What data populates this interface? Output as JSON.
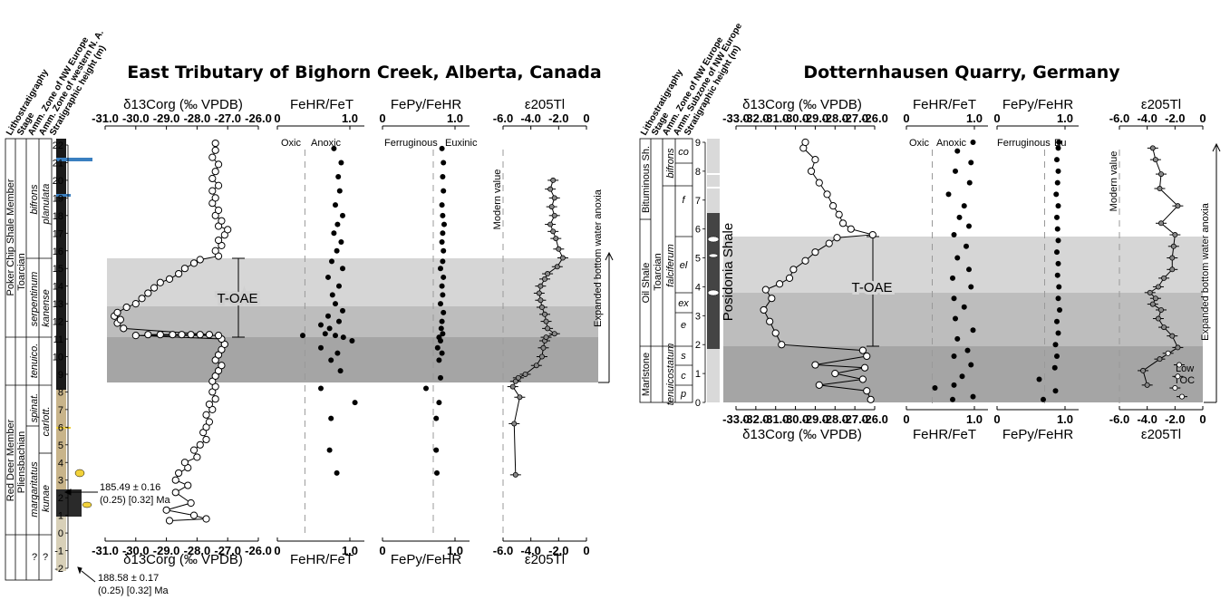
{
  "titles": {
    "left": "East Tributary of Bighorn Creek, Alberta, Canada",
    "right": "Dotternhausen Quarry, Germany"
  },
  "column_headers": {
    "left": [
      "Lithostratigraphy",
      "Stage",
      "Amm. Zone of NW Europe",
      "Amm. Zone of western N. A.",
      "Stratigraphic height (m)"
    ],
    "right": [
      "Lithostratigraphy",
      "Stage",
      "Amm. Zone of NW Europe",
      "Amm. Subzone of NW Europe",
      "Stratigraphic height (m)"
    ]
  },
  "axis_titles": {
    "d13c": "δ13Corg (‰ VPDB)",
    "fehr": "FeHR/FeT",
    "fepy": "FePy/FeHR",
    "tl": "ε205Tl"
  },
  "annotations": {
    "oxic": "Oxic",
    "anoxic": "Anoxic",
    "ferruginous": "Ferruginous",
    "euxinic": "Euxinic",
    "euxinic_short": "Eu",
    "modern": "Modern value",
    "toae": "T-OAE",
    "anoxia": "Expanded bottom water anoxia",
    "low_toc_1": "Low",
    "low_toc_2": "TOC",
    "age_upper_1": "185.49 ± 0.16",
    "age_upper_2": "(0.25) [0.32] Ma",
    "age_lower_1": "188.58 ± 0.17",
    "age_lower_2": "(0.25) [0.32] Ma"
  },
  "strat_left": {
    "members": [
      "Poker Chip Shale Member",
      "Red Deer Member"
    ],
    "stages": [
      "Toarcian",
      "Pliensbachian"
    ],
    "nw_zones": [
      "bifrons",
      "serpentinum",
      "tenuico.",
      "spinat.",
      "margaritatus",
      "?"
    ],
    "na_zones": [
      "planulata",
      "kanense",
      "carlott.",
      "kunae",
      "?"
    ]
  },
  "strat_right": {
    "members": [
      "Bituminous Sh.",
      "Oil Shale",
      "Marlstone"
    ],
    "stage": "Toarcian",
    "zones": [
      "bifrons",
      "falciferum",
      "tenuicostatum"
    ],
    "subzones": [
      "co",
      "f",
      "el",
      "ex",
      "e",
      "s",
      "c",
      "p"
    ],
    "formation": "Posidonia Shale"
  },
  "chart_data": [
    {
      "type": "scatter",
      "panel": "East Tributary δ13Corg",
      "xlabel": "δ13Corg (‰ VPDB)",
      "ylabel": "Stratigraphic height (m)",
      "xlim": [
        -31,
        -26
      ],
      "ylim": [
        -2,
        22
      ],
      "xticks": [
        -31,
        -30,
        -29,
        -28,
        -27,
        -26
      ],
      "yticks": [
        -2,
        -1,
        0,
        1,
        2,
        3,
        4,
        5,
        6,
        7,
        8,
        9,
        10,
        11,
        12,
        13,
        14,
        15,
        16,
        17,
        18,
        19,
        20,
        21,
        22
      ],
      "points": [
        [
          -28.9,
          0.7
        ],
        [
          -28.1,
          1.0
        ],
        [
          -29.0,
          1.3
        ],
        [
          -27.7,
          0.8
        ],
        [
          -28.2,
          1.7
        ],
        [
          -28.7,
          2.3
        ],
        [
          -28.3,
          2.7
        ],
        [
          -28.7,
          3.0
        ],
        [
          -28.6,
          3.4
        ],
        [
          -28.3,
          3.7
        ],
        [
          -28.4,
          4.0
        ],
        [
          -28.0,
          4.3
        ],
        [
          -28.1,
          4.7
        ],
        [
          -27.9,
          5.0
        ],
        [
          -27.7,
          5.3
        ],
        [
          -27.8,
          5.7
        ],
        [
          -27.7,
          6.0
        ],
        [
          -27.6,
          6.3
        ],
        [
          -27.7,
          6.7
        ],
        [
          -27.5,
          7.0
        ],
        [
          -27.6,
          7.3
        ],
        [
          -27.4,
          7.6
        ],
        [
          -27.5,
          8.0
        ],
        [
          -27.4,
          8.3
        ],
        [
          -27.5,
          8.6
        ],
        [
          -27.4,
          8.9
        ],
        [
          -27.3,
          9.2
        ],
        [
          -27.2,
          9.5
        ],
        [
          -27.4,
          9.8
        ],
        [
          -27.3,
          10.1
        ],
        [
          -27.2,
          10.4
        ],
        [
          -27.1,
          10.7
        ],
        [
          -27.2,
          11.0
        ],
        [
          -30.0,
          11.2
        ],
        [
          -29.6,
          11.25
        ],
        [
          -29.2,
          11.25
        ],
        [
          -28.8,
          11.25
        ],
        [
          -28.5,
          11.25
        ],
        [
          -28.2,
          11.25
        ],
        [
          -27.9,
          11.25
        ],
        [
          -27.6,
          11.25
        ],
        [
          -27.3,
          11.2
        ],
        [
          -30.4,
          11.6
        ],
        [
          -30.6,
          11.9
        ],
        [
          -30.5,
          12.1
        ],
        [
          -30.7,
          12.3
        ],
        [
          -30.6,
          12.5
        ],
        [
          -30.3,
          12.8
        ],
        [
          -30.0,
          13.0
        ],
        [
          -29.8,
          13.3
        ],
        [
          -29.6,
          13.6
        ],
        [
          -29.4,
          13.9
        ],
        [
          -29.2,
          14.2
        ],
        [
          -28.9,
          14.4
        ],
        [
          -28.6,
          14.7
        ],
        [
          -28.4,
          15.0
        ],
        [
          -28.1,
          15.3
        ],
        [
          -27.9,
          15.5
        ],
        [
          -27.3,
          15.7
        ],
        [
          -27.4,
          16.0
        ],
        [
          -27.2,
          16.3
        ],
        [
          -27.3,
          16.6
        ],
        [
          -27.1,
          16.9
        ],
        [
          -27.0,
          17.2
        ],
        [
          -27.3,
          17.4
        ],
        [
          -27.2,
          17.7
        ],
        [
          -27.4,
          18.0
        ],
        [
          -27.3,
          18.3
        ],
        [
          -27.5,
          18.7
        ],
        [
          -27.4,
          19.0
        ],
        [
          -27.5,
          19.4
        ],
        [
          -27.3,
          19.7
        ],
        [
          -27.5,
          20.1
        ],
        [
          -27.4,
          20.5
        ],
        [
          -27.3,
          20.9
        ],
        [
          -27.5,
          21.3
        ],
        [
          -27.4,
          21.7
        ],
        [
          -27.4,
          22.1
        ]
      ]
    },
    {
      "type": "scatter",
      "panel": "East Tributary FeHR/FeT",
      "xlabel": "FeHR/FeT",
      "xlim": [
        0,
        1.2
      ],
      "ylim": [
        -2,
        22
      ],
      "xticks": [
        0,
        1.0
      ],
      "threshold": 0.38,
      "points": [
        [
          0.82,
          3.4
        ],
        [
          0.72,
          4.7
        ],
        [
          0.74,
          6.5
        ],
        [
          1.07,
          7.4
        ],
        [
          0.6,
          8.2
        ],
        [
          0.87,
          9.2
        ],
        [
          0.74,
          9.8
        ],
        [
          0.83,
          10.2
        ],
        [
          0.6,
          10.5
        ],
        [
          1.03,
          10.9
        ],
        [
          0.35,
          11.2
        ],
        [
          0.66,
          11.3
        ],
        [
          0.8,
          11.2
        ],
        [
          0.91,
          11.1
        ],
        [
          0.72,
          11.6
        ],
        [
          0.6,
          11.8
        ],
        [
          0.85,
          12.0
        ],
        [
          0.7,
          12.3
        ],
        [
          0.9,
          12.6
        ],
        [
          0.8,
          13.0
        ],
        [
          0.76,
          13.5
        ],
        [
          0.85,
          14.0
        ],
        [
          0.7,
          14.5
        ],
        [
          0.9,
          15.0
        ],
        [
          0.75,
          15.4
        ],
        [
          0.82,
          16.0
        ],
        [
          0.88,
          16.5
        ],
        [
          0.78,
          17.0
        ],
        [
          0.83,
          17.5
        ],
        [
          0.9,
          18.0
        ],
        [
          0.8,
          18.6
        ],
        [
          0.86,
          19.4
        ],
        [
          0.84,
          20.2
        ],
        [
          0.88,
          21.0
        ],
        [
          0.78,
          21.8
        ]
      ]
    },
    {
      "type": "scatter",
      "panel": "East Tributary FePy/FeHR",
      "xlabel": "FePy/FeHR",
      "xlim": [
        0,
        1.2
      ],
      "ylim": [
        -2,
        22
      ],
      "xticks": [
        0,
        1.0
      ],
      "threshold": 0.7,
      "points": [
        [
          0.75,
          3.4
        ],
        [
          0.74,
          4.7
        ],
        [
          0.74,
          6.5
        ],
        [
          0.78,
          7.4
        ],
        [
          0.6,
          8.2
        ],
        [
          0.8,
          8.8
        ],
        [
          0.78,
          9.8
        ],
        [
          0.82,
          10.2
        ],
        [
          0.76,
          10.5
        ],
        [
          0.8,
          10.9
        ],
        [
          0.78,
          11.1
        ],
        [
          0.83,
          11.3
        ],
        [
          0.81,
          11.6
        ],
        [
          0.82,
          12.0
        ],
        [
          0.84,
          12.5
        ],
        [
          0.8,
          13.0
        ],
        [
          0.83,
          13.5
        ],
        [
          0.82,
          14.0
        ],
        [
          0.84,
          14.5
        ],
        [
          0.8,
          15.0
        ],
        [
          0.83,
          15.4
        ],
        [
          0.84,
          16.0
        ],
        [
          0.82,
          16.5
        ],
        [
          0.83,
          17.0
        ],
        [
          0.85,
          17.5
        ],
        [
          0.83,
          18.0
        ],
        [
          0.82,
          18.6
        ],
        [
          0.84,
          19.4
        ],
        [
          0.83,
          20.2
        ],
        [
          0.84,
          21.0
        ],
        [
          0.82,
          21.8
        ]
      ]
    },
    {
      "type": "line",
      "panel": "East Tributary ε205Tl",
      "xlabel": "ε205Tl",
      "xlim": [
        -6,
        0
      ],
      "ylim": [
        -2,
        22
      ],
      "xticks": [
        -6,
        -4,
        -2,
        0
      ],
      "modern_value": -6,
      "points": [
        [
          -5.1,
          3.3
        ],
        [
          -5.2,
          6.2
        ],
        [
          -4.8,
          7.7
        ],
        [
          -5.3,
          8.3
        ],
        [
          -5.1,
          8.6
        ],
        [
          -4.9,
          8.8
        ],
        [
          -4.4,
          9.0
        ],
        [
          -3.6,
          9.5
        ],
        [
          -3.2,
          10.0
        ],
        [
          -3.1,
          10.5
        ],
        [
          -3.0,
          10.9
        ],
        [
          -2.9,
          11.1
        ],
        [
          -2.3,
          11.3
        ],
        [
          -2.8,
          11.6
        ],
        [
          -2.9,
          12.0
        ],
        [
          -3.0,
          12.4
        ],
        [
          -3.2,
          12.8
        ],
        [
          -3.3,
          13.2
        ],
        [
          -3.4,
          13.6
        ],
        [
          -3.3,
          14.0
        ],
        [
          -3.0,
          14.4
        ],
        [
          -2.8,
          14.7
        ],
        [
          -2.1,
          15.1
        ],
        [
          -1.7,
          15.6
        ],
        [
          -2.0,
          16.1
        ],
        [
          -2.2,
          16.7
        ],
        [
          -2.4,
          17.1
        ],
        [
          -2.6,
          17.5
        ],
        [
          -2.3,
          18.0
        ],
        [
          -2.5,
          18.5
        ],
        [
          -2.3,
          19.0
        ],
        [
          -2.6,
          19.5
        ],
        [
          -2.4,
          20.0
        ]
      ]
    },
    {
      "type": "scatter",
      "panel": "Dotternhausen δ13Corg",
      "xlabel": "δ13Corg (‰ VPDB)",
      "ylabel": "Stratigraphic height (m)",
      "xlim": [
        -33,
        -26
      ],
      "ylim": [
        0,
        9
      ],
      "xticks": [
        -33,
        -32,
        -31,
        -30,
        -29,
        -28,
        -27,
        -26
      ],
      "yticks": [
        0,
        1,
        2,
        3,
        4,
        5,
        6,
        7,
        8,
        9
      ],
      "points": [
        [
          -26.2,
          0.1
        ],
        [
          -26.4,
          0.4
        ],
        [
          -28.8,
          0.6
        ],
        [
          -26.6,
          0.8
        ],
        [
          -28.0,
          1.0
        ],
        [
          -26.5,
          1.2
        ],
        [
          -29.0,
          1.3
        ],
        [
          -26.4,
          1.6
        ],
        [
          -26.6,
          1.8
        ],
        [
          -30.7,
          2.0
        ],
        [
          -31.0,
          2.4
        ],
        [
          -31.3,
          2.8
        ],
        [
          -31.6,
          3.2
        ],
        [
          -31.2,
          3.6
        ],
        [
          -31.5,
          3.9
        ],
        [
          -30.8,
          4.1
        ],
        [
          -30.3,
          4.3
        ],
        [
          -30.1,
          4.6
        ],
        [
          -29.5,
          4.9
        ],
        [
          -29.0,
          5.2
        ],
        [
          -28.3,
          5.5
        ],
        [
          -27.9,
          5.7
        ],
        [
          -26.1,
          5.8
        ],
        [
          -27.2,
          6.0
        ],
        [
          -27.6,
          6.2
        ],
        [
          -27.8,
          6.5
        ],
        [
          -28.1,
          6.8
        ],
        [
          -28.4,
          7.2
        ],
        [
          -28.8,
          7.6
        ],
        [
          -29.2,
          8.0
        ],
        [
          -29.0,
          8.4
        ],
        [
          -29.6,
          8.8
        ],
        [
          -29.5,
          9.0
        ]
      ]
    },
    {
      "type": "scatter",
      "panel": "Dotternhausen FeHR/FeT",
      "xlabel": "FeHR/FeT",
      "xlim": [
        0,
        1.2
      ],
      "ylim": [
        0,
        9
      ],
      "xticks": [
        0,
        1.0
      ],
      "threshold": 0.38,
      "points": [
        [
          0.68,
          0.1
        ],
        [
          0.98,
          0.2
        ],
        [
          0.42,
          0.5
        ],
        [
          0.7,
          0.6
        ],
        [
          0.82,
          0.9
        ],
        [
          0.95,
          1.3
        ],
        [
          0.7,
          1.6
        ],
        [
          0.9,
          1.8
        ],
        [
          0.75,
          2.2
        ],
        [
          0.98,
          2.5
        ],
        [
          0.72,
          2.9
        ],
        [
          0.85,
          3.3
        ],
        [
          0.7,
          3.6
        ],
        [
          0.95,
          4.0
        ],
        [
          0.68,
          4.3
        ],
        [
          0.92,
          4.6
        ],
        [
          0.75,
          5.0
        ],
        [
          0.88,
          5.4
        ],
        [
          0.7,
          5.8
        ],
        [
          0.92,
          6.1
        ],
        [
          0.78,
          6.4
        ],
        [
          0.85,
          6.8
        ],
        [
          0.62,
          7.2
        ],
        [
          0.93,
          7.6
        ],
        [
          0.72,
          8.0
        ],
        [
          0.95,
          8.3
        ],
        [
          0.75,
          8.7
        ],
        [
          0.98,
          9.0
        ]
      ]
    },
    {
      "type": "scatter",
      "panel": "Dotternhausen FePy/FeHR",
      "xlabel": "FePy/FeHR",
      "xlim": [
        0,
        1.2
      ],
      "ylim": [
        0,
        9
      ],
      "xticks": [
        0,
        1.0
      ],
      "threshold": 0.7,
      "points": [
        [
          0.68,
          0.1
        ],
        [
          0.86,
          0.4
        ],
        [
          0.62,
          0.8
        ],
        [
          0.85,
          1.2
        ],
        [
          0.88,
          1.6
        ],
        [
          0.86,
          2.0
        ],
        [
          0.9,
          2.4
        ],
        [
          0.88,
          2.8
        ],
        [
          0.92,
          3.2
        ],
        [
          0.9,
          3.6
        ],
        [
          0.91,
          4.0
        ],
        [
          0.89,
          4.4
        ],
        [
          0.9,
          4.8
        ],
        [
          0.88,
          5.2
        ],
        [
          0.9,
          5.6
        ],
        [
          0.89,
          6.0
        ],
        [
          0.88,
          6.4
        ],
        [
          0.9,
          6.8
        ],
        [
          0.87,
          7.2
        ],
        [
          0.89,
          7.6
        ],
        [
          0.9,
          8.0
        ],
        [
          0.88,
          8.4
        ],
        [
          0.9,
          8.8
        ],
        [
          0.91,
          9.0
        ]
      ]
    },
    {
      "type": "line",
      "panel": "Dotternhausen ε205Tl",
      "xlabel": "ε205Tl",
      "xlim": [
        -6,
        0
      ],
      "ylim": [
        0,
        9
      ],
      "xticks": [
        -6,
        -4,
        -2,
        0
      ],
      "modern_value": -6,
      "points": [
        [
          -4.0,
          0.6
        ],
        [
          -4.3,
          1.1
        ],
        [
          -3.1,
          1.5
        ],
        [
          -1.8,
          1.9
        ],
        [
          -2.2,
          2.3
        ],
        [
          -2.8,
          2.6
        ],
        [
          -3.2,
          2.9
        ],
        [
          -3.0,
          3.2
        ],
        [
          -3.6,
          3.4
        ],
        [
          -3.4,
          3.6
        ],
        [
          -3.8,
          3.8
        ],
        [
          -3.2,
          4.0
        ],
        [
          -2.8,
          4.3
        ],
        [
          -2.2,
          4.6
        ],
        [
          -2.2,
          5.0
        ],
        [
          -2.1,
          5.4
        ],
        [
          -2.0,
          5.8
        ],
        [
          -3.0,
          6.2
        ],
        [
          -1.8,
          6.8
        ],
        [
          -3.1,
          7.4
        ],
        [
          -3.0,
          7.9
        ],
        [
          -3.4,
          8.4
        ],
        [
          -3.6,
          8.8
        ]
      ],
      "low_toc_points": [
        [
          -1.5,
          0.2
        ],
        [
          -2.0,
          0.5
        ],
        [
          -1.8,
          0.9
        ],
        [
          -1.7,
          1.3
        ],
        [
          -2.5,
          1.7
        ]
      ]
    }
  ]
}
